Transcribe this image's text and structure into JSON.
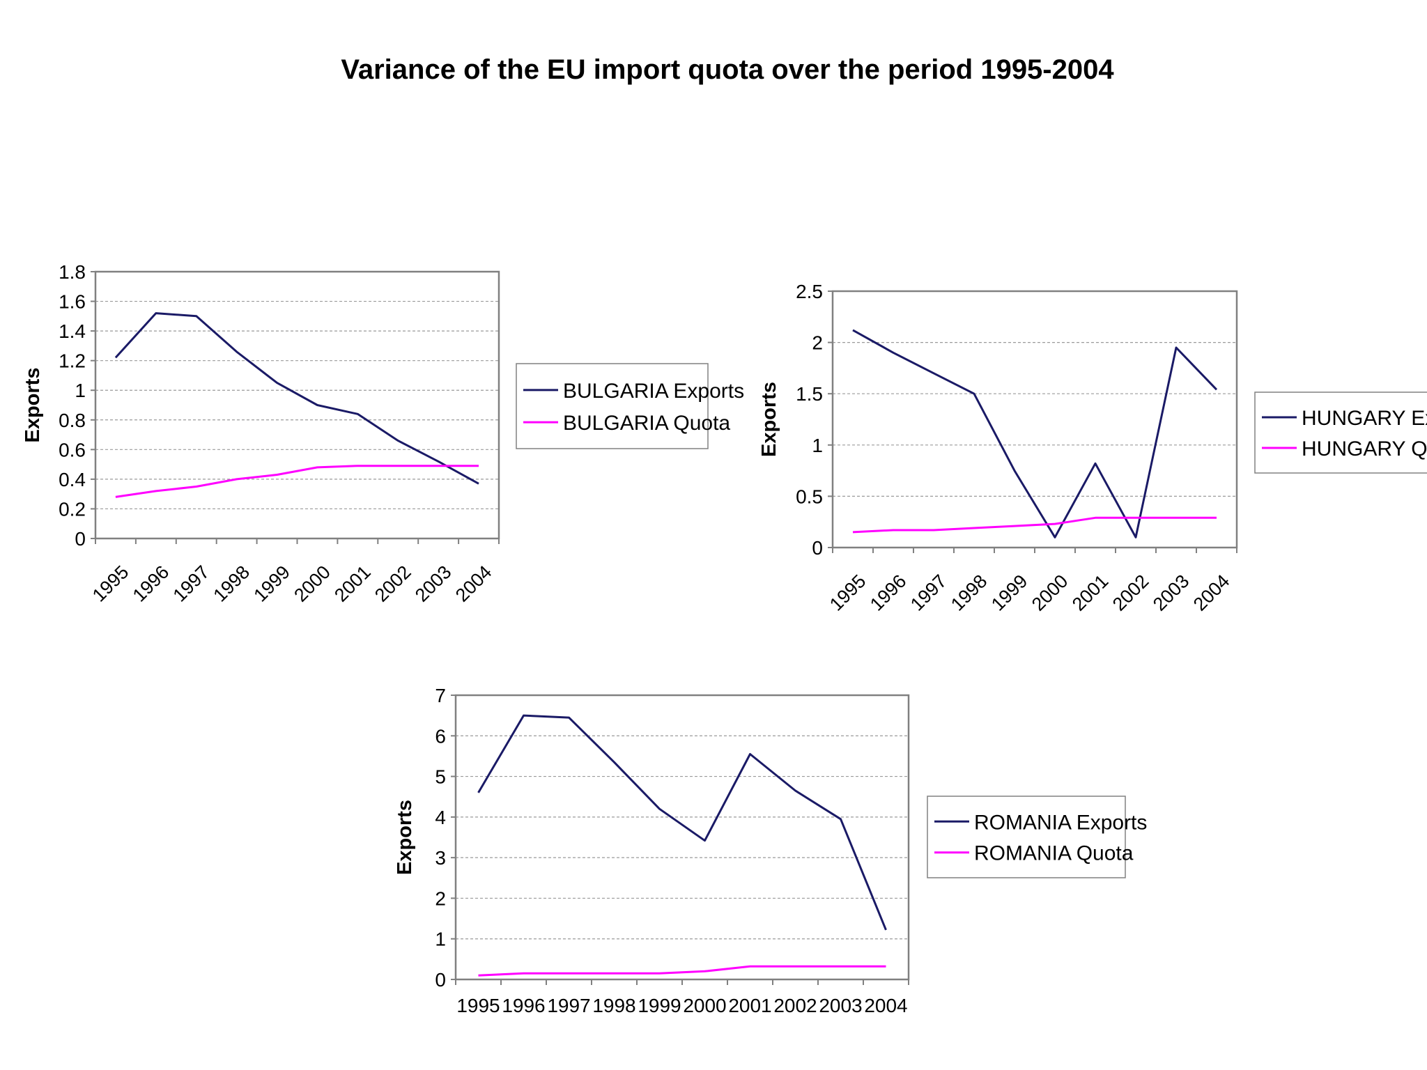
{
  "page": {
    "title": "Variance of the EU import quota over the period 1995-2004"
  },
  "colors": {
    "exports": "#1a1a66",
    "quota": "#ff00ff",
    "frame": "#808080",
    "grid": "#9a9a9a",
    "text": "#000000"
  },
  "chart_data": [
    {
      "id": "bulgaria",
      "type": "line",
      "categories": [
        "1995",
        "1996",
        "1997",
        "1998",
        "1999",
        "2000",
        "2001",
        "2002",
        "2003",
        "2004"
      ],
      "series": [
        {
          "name": "BULGARIA Exports",
          "color": "#1a1a66",
          "values": [
            1.22,
            1.52,
            1.5,
            1.26,
            1.05,
            0.9,
            0.84,
            0.66,
            0.52,
            0.37
          ]
        },
        {
          "name": "BULGARIA Quota",
          "color": "#ff00ff",
          "values": [
            0.28,
            0.32,
            0.35,
            0.4,
            0.43,
            0.48,
            0.49,
            0.49,
            0.49,
            0.49
          ]
        }
      ],
      "ylabel": "Exports",
      "xlabel": "",
      "ylim": [
        0,
        1.8
      ],
      "yticks": [
        "0",
        "0.2",
        "0.4",
        "0.6",
        "0.8",
        "1",
        "1.2",
        "1.4",
        "1.6",
        "1.8"
      ],
      "grid": true,
      "legend": "right",
      "xtick_rotation": "rotated"
    },
    {
      "id": "hungary",
      "type": "line",
      "categories": [
        "1995",
        "1996",
        "1997",
        "1998",
        "1999",
        "2000",
        "2001",
        "2002",
        "2003",
        "2004"
      ],
      "series": [
        {
          "name": "HUNGARY Exports",
          "color": "#1a1a66",
          "values": [
            2.12,
            1.9,
            1.7,
            1.5,
            0.75,
            0.1,
            0.82,
            0.1,
            1.95,
            1.54
          ]
        },
        {
          "name": "HUNGARY Quota",
          "color": "#ff00ff",
          "values": [
            0.15,
            0.17,
            0.17,
            0.19,
            0.21,
            0.23,
            0.29,
            0.29,
            0.29,
            0.29
          ]
        }
      ],
      "ylabel": "Exports",
      "xlabel": "",
      "ylim": [
        0,
        2.5
      ],
      "yticks": [
        "0",
        "0.5",
        "1",
        "1.5",
        "2",
        "2.5"
      ],
      "grid": true,
      "legend": "right",
      "xtick_rotation": "rotated"
    },
    {
      "id": "romania",
      "type": "line",
      "categories": [
        "1995",
        "1996",
        "1997",
        "1998",
        "1999",
        "2000",
        "2001",
        "2002",
        "2003",
        "2004"
      ],
      "series": [
        {
          "name": "ROMANIA Exports",
          "color": "#1a1a66",
          "values": [
            4.6,
            6.5,
            6.45,
            5.35,
            4.2,
            3.42,
            5.55,
            4.65,
            3.95,
            1.22
          ]
        },
        {
          "name": "ROMANIA Quota",
          "color": "#ff00ff",
          "values": [
            0.1,
            0.15,
            0.15,
            0.15,
            0.15,
            0.2,
            0.32,
            0.32,
            0.32,
            0.32
          ]
        }
      ],
      "ylabel": "Exports",
      "xlabel": "",
      "ylim": [
        0,
        7
      ],
      "yticks": [
        "0",
        "1",
        "2",
        "3",
        "4",
        "5",
        "6",
        "7"
      ],
      "grid": true,
      "legend": "right",
      "xtick_rotation": "horizontal"
    }
  ]
}
